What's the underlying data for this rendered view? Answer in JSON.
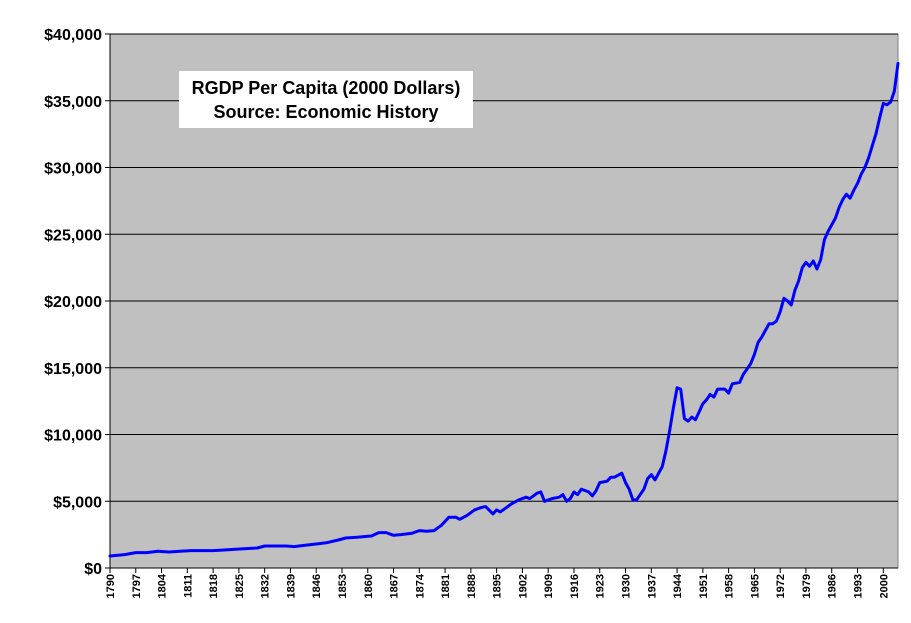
{
  "chart_data": {
    "type": "line",
    "title": "RGDP Per Capita (2000 Dollars)",
    "subtitle": "Source: Economic History",
    "xlabel": "",
    "ylabel": "",
    "ylim": [
      0,
      40000
    ],
    "y_ticks": [
      "$0",
      "$5,000",
      "$10,000",
      "$15,000",
      "$20,000",
      "$25,000",
      "$30,000",
      "$35,000",
      "$40,000"
    ],
    "x_ticks": [
      "1790",
      "1797",
      "1804",
      "1811",
      "1818",
      "1825",
      "1832",
      "1839",
      "1846",
      "1853",
      "1860",
      "1867",
      "1874",
      "1881",
      "1888",
      "1895",
      "1902",
      "1909",
      "1916",
      "1923",
      "1930",
      "1937",
      "1944",
      "1951",
      "1958",
      "1965",
      "1972",
      "1979",
      "1986",
      "1993",
      "2000"
    ],
    "x_range": [
      1790,
      2004
    ],
    "grid": "horizontal",
    "legend": "none",
    "background_color": "#c0c0c0",
    "line_color": "#0000ff",
    "series": [
      {
        "points": [
          [
            1790,
            900
          ],
          [
            1794,
            1000
          ],
          [
            1797,
            1150
          ],
          [
            1800,
            1150
          ],
          [
            1803,
            1250
          ],
          [
            1806,
            1200
          ],
          [
            1809,
            1250
          ],
          [
            1812,
            1300
          ],
          [
            1815,
            1300
          ],
          [
            1818,
            1300
          ],
          [
            1821,
            1350
          ],
          [
            1824,
            1400
          ],
          [
            1827,
            1450
          ],
          [
            1830,
            1500
          ],
          [
            1832,
            1650
          ],
          [
            1835,
            1650
          ],
          [
            1838,
            1650
          ],
          [
            1840,
            1600
          ],
          [
            1843,
            1700
          ],
          [
            1846,
            1800
          ],
          [
            1849,
            1900
          ],
          [
            1852,
            2100
          ],
          [
            1854,
            2250
          ],
          [
            1857,
            2300
          ],
          [
            1859,
            2350
          ],
          [
            1861,
            2400
          ],
          [
            1863,
            2650
          ],
          [
            1865,
            2650
          ],
          [
            1867,
            2450
          ],
          [
            1869,
            2500
          ],
          [
            1872,
            2600
          ],
          [
            1874,
            2800
          ],
          [
            1876,
            2750
          ],
          [
            1878,
            2800
          ],
          [
            1880,
            3200
          ],
          [
            1882,
            3800
          ],
          [
            1884,
            3800
          ],
          [
            1885,
            3650
          ],
          [
            1887,
            3950
          ],
          [
            1889,
            4350
          ],
          [
            1891,
            4550
          ],
          [
            1892,
            4600
          ],
          [
            1894,
            4050
          ],
          [
            1895,
            4350
          ],
          [
            1896,
            4200
          ],
          [
            1897,
            4400
          ],
          [
            1899,
            4800
          ],
          [
            1901,
            5100
          ],
          [
            1903,
            5300
          ],
          [
            1904,
            5200
          ],
          [
            1906,
            5600
          ],
          [
            1907,
            5700
          ],
          [
            1908,
            5000
          ],
          [
            1910,
            5200
          ],
          [
            1912,
            5300
          ],
          [
            1913,
            5500
          ],
          [
            1914,
            5000
          ],
          [
            1915,
            5200
          ],
          [
            1916,
            5700
          ],
          [
            1917,
            5500
          ],
          [
            1918,
            5900
          ],
          [
            1920,
            5700
          ],
          [
            1921,
            5400
          ],
          [
            1922,
            5800
          ],
          [
            1923,
            6400
          ],
          [
            1925,
            6500
          ],
          [
            1926,
            6800
          ],
          [
            1927,
            6800
          ],
          [
            1929,
            7100
          ],
          [
            1930,
            6400
          ],
          [
            1931,
            5900
          ],
          [
            1932,
            5100
          ],
          [
            1933,
            5100
          ],
          [
            1935,
            5900
          ],
          [
            1936,
            6700
          ],
          [
            1937,
            7000
          ],
          [
            1938,
            6600
          ],
          [
            1940,
            7600
          ],
          [
            1941,
            8800
          ],
          [
            1942,
            10300
          ],
          [
            1943,
            12000
          ],
          [
            1944,
            13500
          ],
          [
            1945,
            13400
          ],
          [
            1946,
            11200
          ],
          [
            1947,
            11000
          ],
          [
            1948,
            11300
          ],
          [
            1949,
            11100
          ],
          [
            1950,
            11700
          ],
          [
            1951,
            12300
          ],
          [
            1952,
            12600
          ],
          [
            1953,
            13000
          ],
          [
            1954,
            12800
          ],
          [
            1955,
            13400
          ],
          [
            1957,
            13400
          ],
          [
            1958,
            13100
          ],
          [
            1959,
            13800
          ],
          [
            1961,
            13900
          ],
          [
            1962,
            14500
          ],
          [
            1964,
            15300
          ],
          [
            1965,
            16000
          ],
          [
            1966,
            16900
          ],
          [
            1967,
            17300
          ],
          [
            1968,
            17800
          ],
          [
            1969,
            18300
          ],
          [
            1970,
            18300
          ],
          [
            1971,
            18500
          ],
          [
            1972,
            19200
          ],
          [
            1973,
            20200
          ],
          [
            1974,
            20000
          ],
          [
            1975,
            19700
          ],
          [
            1976,
            20800
          ],
          [
            1977,
            21500
          ],
          [
            1978,
            22500
          ],
          [
            1979,
            22900
          ],
          [
            1980,
            22600
          ],
          [
            1981,
            23000
          ],
          [
            1982,
            22400
          ],
          [
            1983,
            23100
          ],
          [
            1984,
            24600
          ],
          [
            1985,
            25200
          ],
          [
            1986,
            25700
          ],
          [
            1987,
            26200
          ],
          [
            1988,
            27000
          ],
          [
            1989,
            27600
          ],
          [
            1990,
            28000
          ],
          [
            1991,
            27700
          ],
          [
            1992,
            28300
          ],
          [
            1993,
            28800
          ],
          [
            1994,
            29500
          ],
          [
            1995,
            30000
          ],
          [
            1996,
            30700
          ],
          [
            1997,
            31600
          ],
          [
            1998,
            32500
          ],
          [
            1999,
            33700
          ],
          [
            2000,
            34800
          ],
          [
            2001,
            34700
          ],
          [
            2002,
            34900
          ],
          [
            2003,
            35700
          ],
          [
            2004,
            37800
          ]
        ]
      }
    ]
  }
}
